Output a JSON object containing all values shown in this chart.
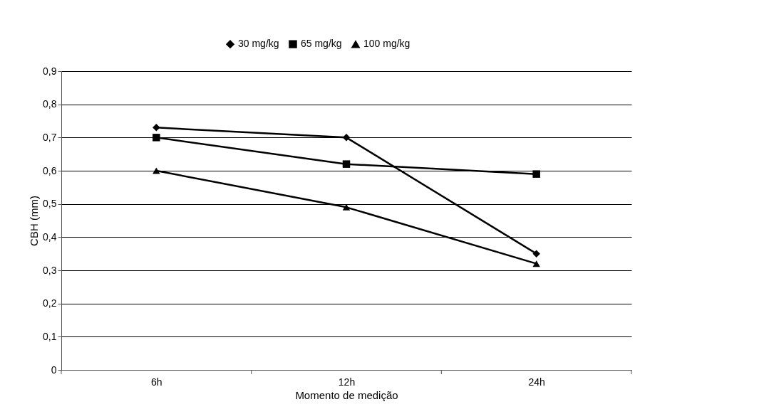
{
  "chart_data": {
    "type": "line",
    "xlabel": "Momento de medição",
    "ylabel": "CBH (mm)",
    "categories": [
      "6h",
      "12h",
      "24h"
    ],
    "series": [
      {
        "name": "30 mg/kg",
        "color": "#000000",
        "marker": "diamond",
        "values": [
          0.73,
          0.7,
          0.35
        ]
      },
      {
        "name": "65 mg/kg",
        "color": "#000000",
        "marker": "square",
        "values": [
          0.7,
          0.62,
          0.59
        ]
      },
      {
        "name": "100 mg/kg",
        "color": "#000000",
        "marker": "triangle",
        "values": [
          0.6,
          0.49,
          0.32
        ]
      }
    ],
    "ylim": [
      0,
      0.9
    ],
    "yticks": [
      {
        "value": 0,
        "label": "0"
      },
      {
        "value": 0.1,
        "label": "0,1"
      },
      {
        "value": 0.2,
        "label": "0,2"
      },
      {
        "value": 0.3,
        "label": "0,3"
      },
      {
        "value": 0.4,
        "label": "0,4"
      },
      {
        "value": 0.5,
        "label": "0,5"
      },
      {
        "value": 0.6,
        "label": "0,6"
      },
      {
        "value": 0.7,
        "label": "0,7"
      },
      {
        "value": 0.8,
        "label": "0,8"
      },
      {
        "value": 0.9,
        "label": "0,9"
      }
    ],
    "grid": "y",
    "legend": "top",
    "line_style": "solid"
  }
}
